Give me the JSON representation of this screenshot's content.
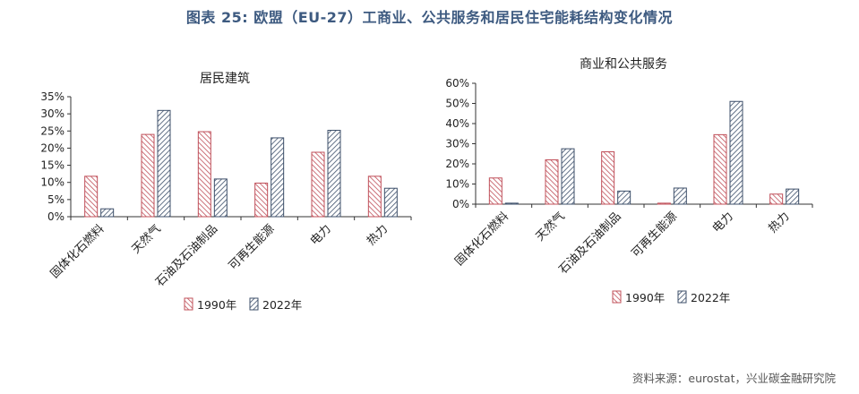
{
  "figure_title": "图表 25: 欧盟（EU-27）工商业、公共服务和居民住宅能耗结构变化情况",
  "source": "资料来源：eurostat，兴业碳金融研究院",
  "colors": {
    "s1990": "#c0505a",
    "s2022": "#3d4f6a",
    "title": "#3d5a80"
  },
  "chart_data": [
    {
      "type": "bar",
      "title": "居民建筑",
      "categories": [
        "固体化石燃料",
        "天然气",
        "石油及石油制品",
        "可再生能源",
        "电力",
        "热力"
      ],
      "ylim": [
        0,
        35
      ],
      "yticks": [
        "0%",
        "5%",
        "10%",
        "15%",
        "20%",
        "25%",
        "30%",
        "35%"
      ],
      "series": [
        {
          "name": "1990年",
          "values": [
            11.8,
            24,
            24.8,
            9.8,
            18.8,
            11.8
          ]
        },
        {
          "name": "2022年",
          "values": [
            2.3,
            31,
            11,
            23,
            25.2,
            8.3
          ]
        }
      ],
      "grid": false,
      "legend": "bottom"
    },
    {
      "type": "bar",
      "title": "商业和公共服务",
      "categories": [
        "固体化石燃料",
        "天然气",
        "石油及石油制品",
        "可再生能源",
        "电力",
        "热力"
      ],
      "ylim": [
        0,
        60
      ],
      "yticks": [
        "0%",
        "10%",
        "20%",
        "30%",
        "40%",
        "50%",
        "60%"
      ],
      "series": [
        {
          "name": "1990年",
          "values": [
            13,
            22,
            26,
            0.5,
            34.5,
            5
          ]
        },
        {
          "name": "2022年",
          "values": [
            0.5,
            27.5,
            6.5,
            8,
            51,
            7.5
          ]
        }
      ],
      "grid": false,
      "legend": "bottom"
    }
  ]
}
